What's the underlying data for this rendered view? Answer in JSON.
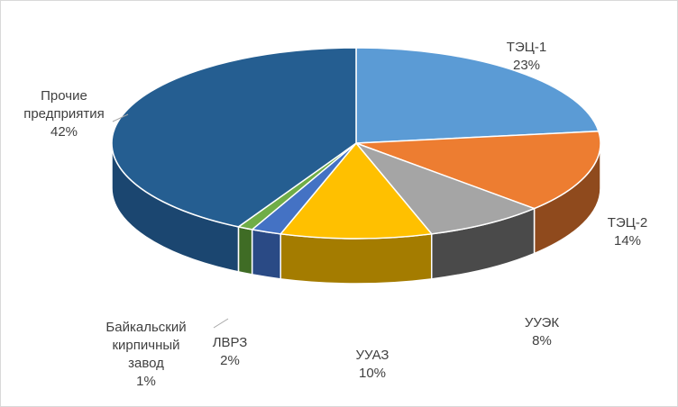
{
  "chart_data": {
    "type": "pie",
    "style": "3d-exploded-edge",
    "slices": [
      {
        "category": "ТЭЦ-1",
        "value": 23,
        "percent_label": "23%",
        "color": "#5b9bd5",
        "side_color": "#3f6e99"
      },
      {
        "category": "ТЭЦ-2",
        "value": 14,
        "percent_label": "14%",
        "color": "#ed7d31",
        "side_color": "#8f4a1d"
      },
      {
        "category": "УУЭК",
        "value": 8,
        "percent_label": "8%",
        "color": "#a5a5a5",
        "side_color": "#4a4a4a"
      },
      {
        "category": "УУАЗ",
        "value": 10,
        "percent_label": "10%",
        "color": "#ffc000",
        "side_color": "#a47c00"
      },
      {
        "category": "ЛВРЗ",
        "value": 2,
        "percent_label": "2%",
        "color": "#4472c4",
        "side_color": "#2a4a85"
      },
      {
        "category": "Байкальский\nкирпичный\nзавод",
        "value": 1,
        "percent_label": "1%",
        "color": "#70ad47",
        "side_color": "#3f6c25"
      },
      {
        "category": "Прочие\nпредприятия",
        "value": 42,
        "percent_label": "42%",
        "color": "#255e91",
        "side_color": "#1b4670"
      }
    ],
    "legend": "none",
    "data_labels": "category-and-percent"
  }
}
